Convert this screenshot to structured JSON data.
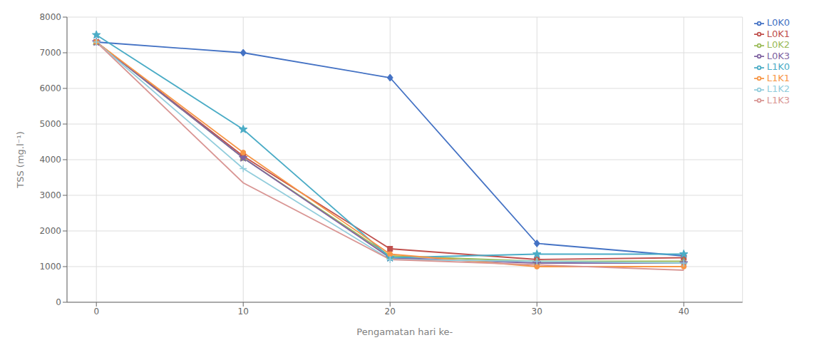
{
  "chart_data": {
    "type": "line",
    "xlabel": "Pengamatan hari ke-",
    "ylabel": "TSS (mg.l⁻¹)",
    "x": [
      0,
      10,
      20,
      30,
      40
    ],
    "xlim": [
      -2,
      44
    ],
    "xticks": [
      0,
      10,
      20,
      30,
      40
    ],
    "ylim": [
      0,
      8000
    ],
    "yticks": [
      0,
      1000,
      2000,
      3000,
      4000,
      5000,
      6000,
      7000,
      8000
    ],
    "grid": true,
    "legend": "right",
    "series": [
      {
        "name": "L0K0",
        "color": "#4472C4",
        "marker": "diamond",
        "values": [
          7300,
          7000,
          6300,
          1650,
          1300
        ]
      },
      {
        "name": "L0K1",
        "color": "#C0504D",
        "marker": "square",
        "values": [
          7300,
          4100,
          1500,
          1200,
          1250
        ]
      },
      {
        "name": "L0K2",
        "color": "#9BBB59",
        "marker": "triangle",
        "values": [
          7300,
          4050,
          1300,
          1150,
          1150
        ]
      },
      {
        "name": "L0K3",
        "color": "#8064A2",
        "marker": "star",
        "values": [
          7300,
          4050,
          1250,
          1100,
          1100
        ]
      },
      {
        "name": "L1K0",
        "color": "#4BACC6",
        "marker": "star",
        "values": [
          7500,
          4850,
          1250,
          1350,
          1350
        ]
      },
      {
        "name": "L1K1",
        "color": "#F79646",
        "marker": "circle",
        "values": [
          7300,
          4200,
          1350,
          1000,
          1000
        ]
      },
      {
        "name": "L1K2",
        "color": "#92CDDC",
        "marker": "plus",
        "values": [
          7300,
          3750,
          1200,
          1150,
          1100
        ]
      },
      {
        "name": "L1K3",
        "color": "#D99694",
        "marker": "none",
        "values": [
          7300,
          3350,
          1200,
          1050,
          900
        ]
      }
    ]
  }
}
